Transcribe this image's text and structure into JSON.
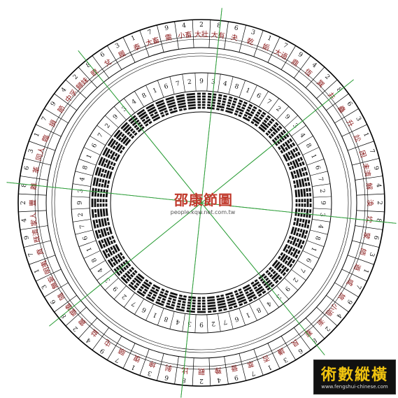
{
  "title": "邵康節圖",
  "url": "people.kqw.net.com.tw",
  "logo": {
    "main": "術數縱橫",
    "sub": "www.fengshui-chinese.com"
  },
  "colors": {
    "ring_line": "#000000",
    "hexagram_name": "#8b1a1a",
    "digit": "#111111",
    "axis": "#2e9e3a"
  },
  "outer_ring_sample_labels": [
    "大壯",
    "大有",
    "夬",
    "乾",
    "姤",
    "大過",
    "鼎",
    "恆",
    "巽",
    "井",
    "蠱",
    "升",
    "訟",
    "困",
    "未濟",
    "解",
    "渙",
    "坎",
    "蒙",
    "師",
    "遯",
    "咸",
    "旅",
    "小過",
    "漸",
    "蹇",
    "艮",
    "謙",
    "否",
    "萃",
    "晉",
    "豫",
    "觀",
    "比",
    "剝",
    "坤",
    "復",
    "頤",
    "屯",
    "益",
    "震",
    "噬嗑",
    "隨",
    "無妄",
    "明夷",
    "賁",
    "既濟",
    "家人",
    "豐",
    "離",
    "革",
    "同人",
    "臨",
    "損",
    "節",
    "中孚",
    "歸妹",
    "睽",
    "兌",
    "履",
    "泰",
    "大畜",
    "需",
    "小畜"
  ],
  "outer_digits": [
    "2",
    "8",
    "6",
    "3",
    "1",
    "7",
    "9",
    "4",
    "2",
    "8",
    "6",
    "3",
    "1",
    "7",
    "9",
    "4",
    "2",
    "8",
    "6",
    "3",
    "1",
    "7",
    "9",
    "4",
    "2",
    "8",
    "6",
    "3",
    "1",
    "7",
    "9",
    "4",
    "2",
    "8",
    "6",
    "3",
    "1",
    "7",
    "9",
    "4",
    "2",
    "8",
    "6",
    "3",
    "1",
    "7",
    "9",
    "4",
    "2",
    "8",
    "6",
    "3",
    "1",
    "7",
    "9",
    "4",
    "2",
    "8",
    "6",
    "3",
    "1",
    "7",
    "9",
    "4"
  ],
  "inner_digits": [
    "9",
    "3",
    "4",
    "8",
    "1",
    "6",
    "7",
    "2",
    "9",
    "3",
    "4",
    "8",
    "1",
    "6",
    "7",
    "2",
    "9",
    "3",
    "4",
    "8",
    "1",
    "6",
    "7",
    "2",
    "9",
    "3",
    "4",
    "8",
    "1",
    "6",
    "7",
    "2",
    "9",
    "3",
    "4",
    "8",
    "1",
    "6",
    "7",
    "2",
    "9",
    "3",
    "4",
    "8",
    "1",
    "6",
    "7",
    "2",
    "9",
    "3",
    "4",
    "8",
    "1",
    "6",
    "7",
    "2",
    "9",
    "3",
    "4",
    "8",
    "1",
    "6",
    "7",
    "2"
  ]
}
